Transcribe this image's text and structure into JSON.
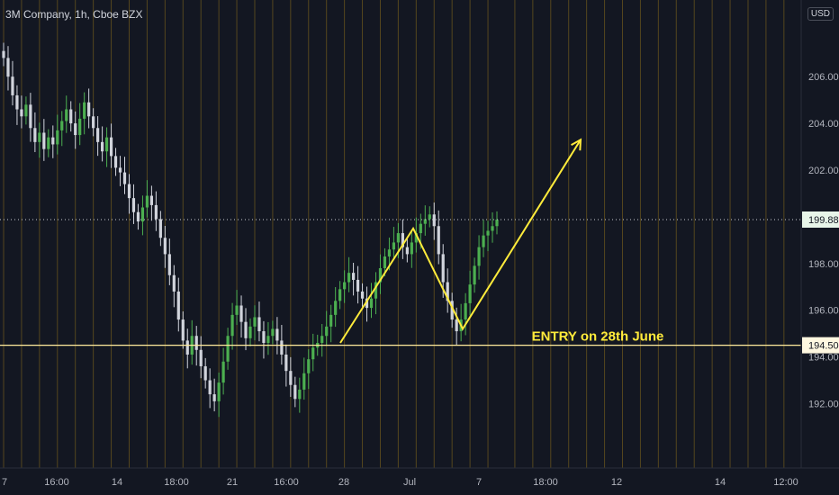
{
  "header": {
    "title": "3M Company, 1h, Cboe BZX",
    "currency": "USD"
  },
  "colors": {
    "background": "#131722",
    "up_candle": "#26a69a",
    "up_candle_green": "#4caf50",
    "down_candle": "#d1d4dc",
    "session_line": "#8a6d1c",
    "level_line": "#ffeb9c",
    "arrow": "#ffeb3b",
    "price_label": "#ffffff",
    "last_price_bg": "#e8f5e9"
  },
  "chart_data": {
    "type": "candlestick",
    "title": "3M Company, 1h, Cboe BZX",
    "y_axis": {
      "min": 191,
      "max": 208,
      "ticks": [
        "206.00",
        "204.00",
        "202.00",
        "198.00",
        "196.00",
        "194.00",
        "192.00"
      ]
    },
    "x_axis": {
      "ticks": [
        "7",
        "16:00",
        "14",
        "18:00",
        "21",
        "16:00",
        "28",
        "Jul",
        "7",
        "18:00",
        "12",
        "14",
        "12:00"
      ]
    },
    "last_price": 199.88,
    "last_price_label": "199.88",
    "entry_level": 194.5,
    "entry_label": "194.50",
    "annotation": "ENTRY on 28th June",
    "pattern_points": [
      {
        "bar": 0,
        "price": 194.6
      },
      {
        "bar": 1,
        "price": 199.5
      },
      {
        "bar": 2,
        "price": 195.2
      },
      {
        "bar": 3,
        "price": 203.3
      }
    ],
    "closes": [
      206.8,
      206.0,
      205.2,
      204.6,
      204.3,
      204.8,
      203.8,
      203.2,
      203.6,
      202.9,
      203.4,
      203.1,
      203.7,
      204.1,
      204.6,
      204.0,
      203.5,
      204.2,
      204.9,
      204.3,
      203.8,
      203.2,
      202.8,
      203.4,
      202.6,
      202.1,
      201.9,
      201.4,
      200.8,
      200.2,
      199.8,
      200.4,
      200.9,
      200.5,
      199.9,
      199.1,
      198.4,
      197.5,
      196.8,
      195.6,
      194.7,
      194.1,
      194.9,
      194.3,
      193.6,
      193.0,
      192.4,
      192.1,
      192.9,
      193.8,
      194.9,
      195.8,
      196.2,
      195.5,
      194.8,
      195.3,
      195.7,
      195.1,
      194.6,
      194.9,
      195.2,
      194.7,
      194.1,
      193.4,
      192.8,
      192.2,
      192.6,
      193.3,
      193.9,
      194.4,
      194.6,
      194.9,
      195.3,
      195.8,
      196.4,
      196.9,
      197.2,
      197.6,
      197.3,
      196.8,
      196.5,
      196.1,
      196.5,
      197.2,
      197.8,
      198.3,
      198.6,
      198.9,
      199.3,
      198.7,
      198.4,
      198.9,
      199.3,
      199.7,
      199.9,
      200.1,
      199.6,
      198.4,
      197.2,
      196.4,
      195.6,
      195.1,
      195.6,
      196.3,
      197.1,
      197.9,
      198.7,
      199.2,
      199.4,
      199.6,
      199.88
    ]
  }
}
